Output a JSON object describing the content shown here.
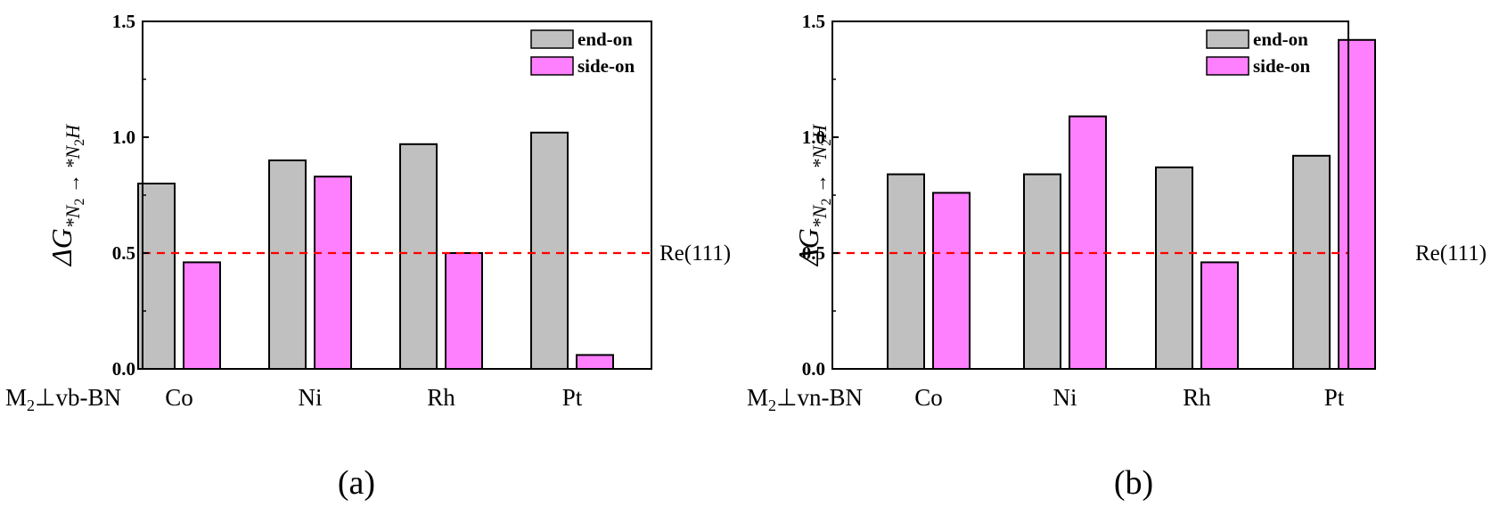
{
  "chart_data": [
    {
      "type": "bar",
      "panel_label": "(a)",
      "row_label": {
        "base": "M",
        "subscript": "2",
        "rest": "⊥vb-BN"
      },
      "ylabel": {
        "delta": "ΔG",
        "sub_1": "*N",
        "sub_1_index": "2",
        "arrow": " → ",
        "sub_2": "*N",
        "sub_2_index": "2",
        "sub_2_tail": "H"
      },
      "categories": [
        "Co",
        "Ni",
        "Rh",
        "Pt"
      ],
      "series": [
        {
          "name": "end-on",
          "color": "#c0c0c0",
          "values": [
            0.8,
            0.9,
            0.97,
            1.02
          ]
        },
        {
          "name": "side-on",
          "color": "#ff80ff",
          "values": [
            0.46,
            0.83,
            0.5,
            0.06
          ]
        }
      ],
      "ylim": [
        0,
        1.5
      ],
      "yticks": [
        "0.0",
        "0.5",
        "1.0",
        "1.5"
      ],
      "reference": {
        "label": "Re(111)",
        "value": 0.5,
        "color": "#ff0000"
      },
      "legend_position": "top-right"
    },
    {
      "type": "bar",
      "panel_label": "(b)",
      "row_label": {
        "base": "M",
        "subscript": "2",
        "rest": "⊥vn-BN"
      },
      "ylabel": {
        "delta": "ΔG",
        "sub_1": "*N",
        "sub_1_index": "2",
        "arrow": " → ",
        "sub_2": "*N",
        "sub_2_index": "2",
        "sub_2_tail": "H"
      },
      "categories": [
        "Co",
        "Ni",
        "Rh",
        "Pt"
      ],
      "series": [
        {
          "name": "end-on",
          "color": "#c0c0c0",
          "values": [
            0.84,
            0.84,
            0.87,
            0.92
          ]
        },
        {
          "name": "side-on",
          "color": "#ff80ff",
          "values": [
            0.76,
            1.09,
            0.46,
            1.42
          ]
        }
      ],
      "ylim": [
        0,
        1.5
      ],
      "yticks": [
        "0.0",
        "0.5",
        "1.0",
        "1.5"
      ],
      "reference": {
        "label": "Re(111)",
        "value": 0.5,
        "color": "#ff0000"
      },
      "legend_position": "top-right"
    }
  ]
}
